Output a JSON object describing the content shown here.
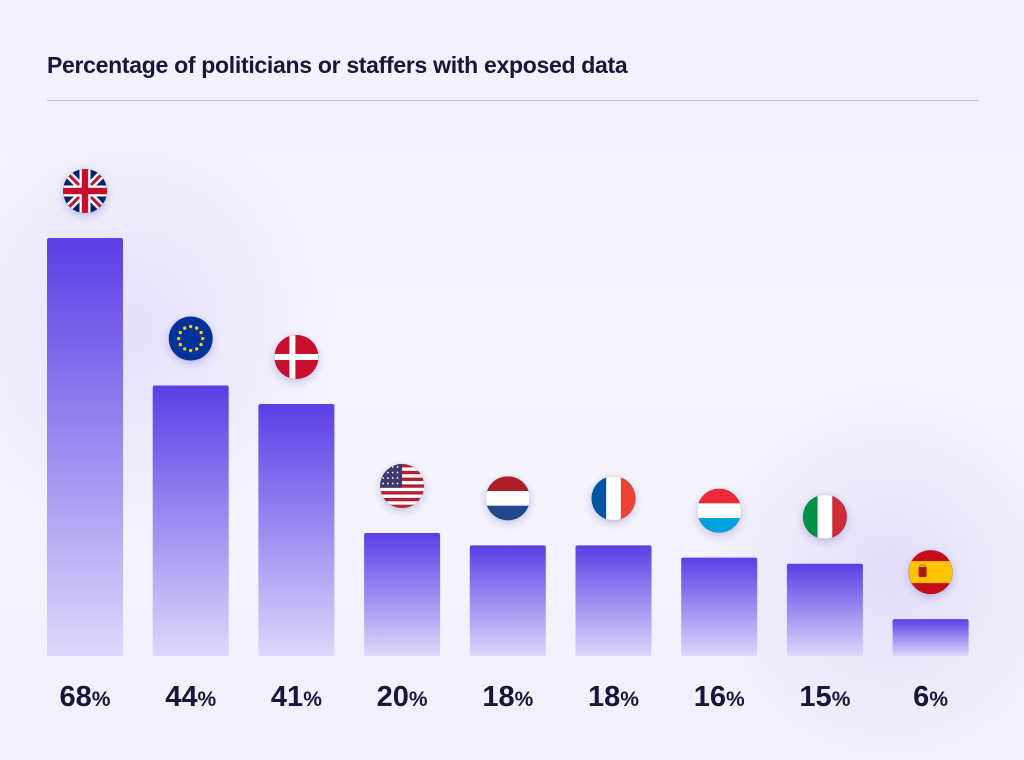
{
  "chart_data": {
    "type": "bar",
    "title": "Percentage of politicians or staffers with exposed data",
    "xlabel": "",
    "ylabel": "",
    "ylim": [
      0,
      68
    ],
    "unit": "%",
    "categories": [
      "UK",
      "EU",
      "Denmark",
      "USA",
      "Netherlands",
      "France",
      "Luxembourg",
      "Italy",
      "Spain"
    ],
    "values": [
      68,
      44,
      41,
      20,
      18,
      18,
      16,
      15,
      6
    ],
    "flags": [
      "uk",
      "eu",
      "denmark",
      "usa",
      "netherlands",
      "france",
      "luxembourg",
      "italy",
      "spain"
    ],
    "grid": false,
    "legend": "none",
    "bar_color_top": "#5b3ee6",
    "bar_color_bottom": "#ddd8fb"
  }
}
